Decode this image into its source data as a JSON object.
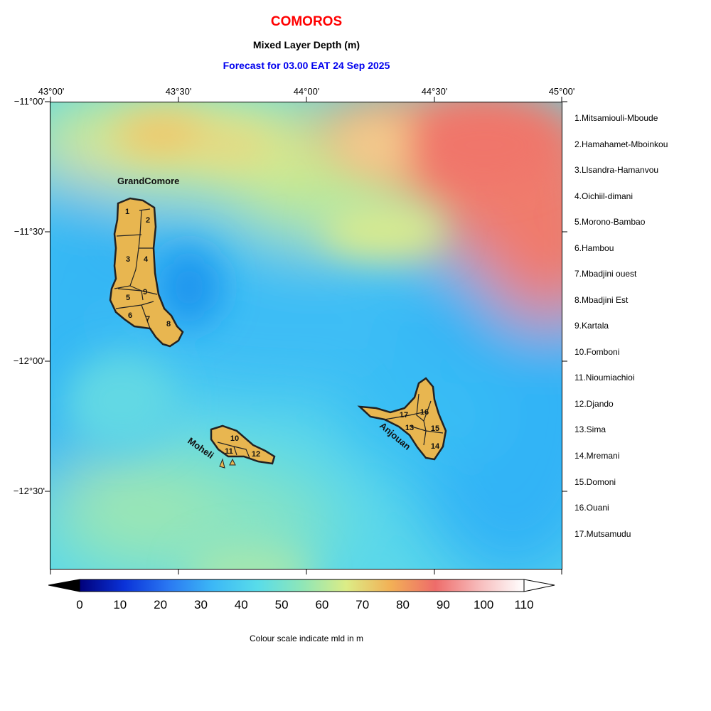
{
  "header": {
    "title": "COMOROS",
    "subtitle": "Mixed Layer Depth (m)",
    "forecast": "Forecast for  03.00 EAT 24 Sep 2025"
  },
  "axes": {
    "longitude_labels": [
      "43°00'",
      "43°30'",
      "44°00'",
      "44°30'",
      "45°00'"
    ],
    "latitude_labels": [
      "−11°00'",
      "−11°30'",
      "−12°00'",
      "−12°30'"
    ]
  },
  "islands": {
    "grand_comore": "GrandComore",
    "moheli": "Moheli",
    "anjouan": "Anjouan"
  },
  "region_numbers": [
    "1",
    "2",
    "3",
    "4",
    "5",
    "6",
    "7",
    "8",
    "9",
    "10",
    "11",
    "12",
    "13",
    "14",
    "15",
    "16",
    "17"
  ],
  "legend": [
    "1.Mitsamiouli-Mboude",
    "2.Hamahamet-Mboinkou",
    "3.Llsandra-Hamanvou",
    "4.Oichiil-dimani",
    "5.Morono-Bambao",
    "6.Hambou",
    "7.Mbadjini ouest",
    "8.Mbadjini Est",
    "9.Kartala",
    "10.Fomboni",
    "11.Nioumiachioi",
    "12.Djando",
    "13.Sima",
    "14.Mremani",
    "15.Domoni",
    "16.Ouani",
    "17.Mutsamudu"
  ],
  "colorbar": {
    "ticks": [
      "0",
      "10",
      "20",
      "30",
      "40",
      "50",
      "60",
      "70",
      "80",
      "90",
      "100",
      "110"
    ],
    "min": 0,
    "max": 110,
    "caption": "Colour scale indicate mld in m"
  },
  "colors": {
    "island_fill": "#e8b650",
    "title": "#ff0000",
    "forecast": "#0000ee"
  }
}
